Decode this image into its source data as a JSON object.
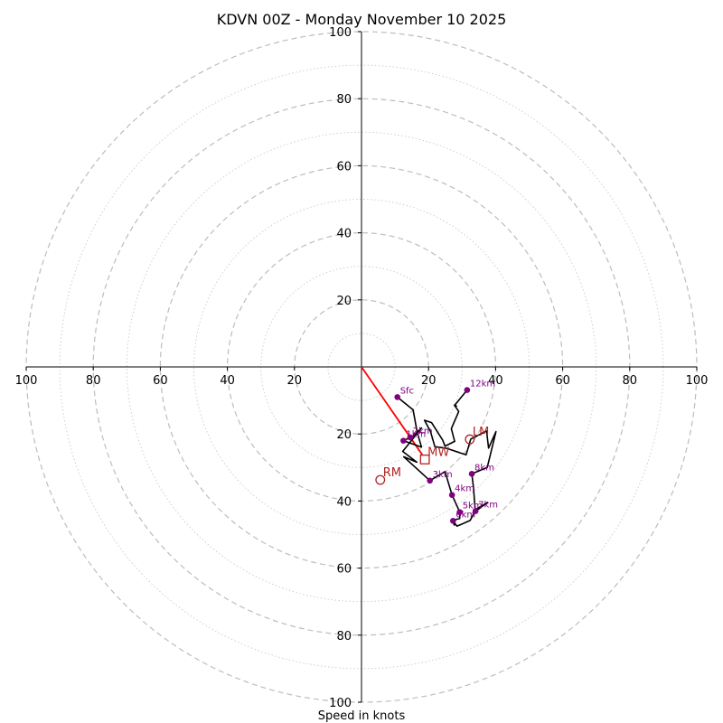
{
  "chart_data": {
    "type": "hodograph",
    "title": "KDVN 00Z - Monday November 10 2025",
    "xlabel": "Speed in knots",
    "range_knots": 100,
    "ring_major": [
      20,
      40,
      60,
      80,
      100
    ],
    "ring_minor": [
      10,
      30,
      50,
      70,
      90
    ],
    "tick_labels": {
      "left": [
        "100",
        "80",
        "60",
        "40",
        "20"
      ],
      "right": [
        "20",
        "40",
        "60",
        "80",
        "100"
      ],
      "up": [
        "20",
        "40",
        "60",
        "80",
        "100"
      ],
      "down": [
        "20",
        "40",
        "60",
        "80",
        "100"
      ]
    },
    "trace_color": "#000000",
    "trace": [
      [
        10.7,
        -9
      ],
      [
        15.4,
        -12.8
      ],
      [
        16.6,
        -19.5
      ],
      [
        17.9,
        -23.9
      ],
      [
        12.5,
        -22
      ],
      [
        15.3,
        -20.7
      ],
      [
        17.9,
        -18.2
      ],
      [
        12.3,
        -25.2
      ],
      [
        16.5,
        -28.4
      ],
      [
        12.6,
        -26.8
      ],
      [
        20.4,
        -33.9
      ],
      [
        24.9,
        -31.2
      ],
      [
        27,
        -38.2
      ],
      [
        29.3,
        -43.3
      ],
      [
        29.3,
        -45.2
      ],
      [
        27.1,
        -45.8
      ],
      [
        27.7,
        -47.2
      ],
      [
        27.5,
        -45.6
      ],
      [
        27.3,
        -45.9
      ],
      [
        28.5,
        -47.5
      ],
      [
        32.4,
        -45.8
      ],
      [
        33.8,
        -43.2
      ],
      [
        37.6,
        -40.4
      ],
      [
        33.9,
        -42.6
      ],
      [
        33.4,
        -36
      ],
      [
        32.9,
        -31.9
      ],
      [
        37.5,
        -30
      ],
      [
        40.1,
        -19.3
      ],
      [
        37.9,
        -24.2
      ],
      [
        37.3,
        -19.1
      ],
      [
        32.6,
        -21.5
      ],
      [
        31.2,
        -26.2
      ],
      [
        25.1,
        -24.2
      ],
      [
        21.9,
        -23.8
      ],
      [
        20.6,
        -19.3
      ],
      [
        18.8,
        -15.9
      ],
      [
        20.9,
        -16.6
      ],
      [
        24.2,
        -21.8
      ],
      [
        24.9,
        -23.6
      ],
      [
        27.8,
        -22.2
      ],
      [
        26.8,
        -18.4
      ],
      [
        29,
        -13.3
      ],
      [
        27.7,
        -11.4
      ],
      [
        28.3,
        -11.7
      ],
      [
        27.9,
        -11.3
      ],
      [
        31.5,
        -6.9
      ]
    ],
    "height_points": [
      {
        "label": "Sfc",
        "u": 10.7,
        "v": -9
      },
      {
        "label": "1km",
        "u": 12.5,
        "v": -22
      },
      {
        "label": "2km",
        "u": 14.5,
        "v": -21
      },
      {
        "label": "3km",
        "u": 20.4,
        "v": -33.9
      },
      {
        "label": "4km",
        "u": 27,
        "v": -38.2
      },
      {
        "label": "5km",
        "u": 29.3,
        "v": -43.3
      },
      {
        "label": "6km",
        "u": 27.3,
        "v": -45.9
      },
      {
        "label": "7km",
        "u": 34,
        "v": -43
      },
      {
        "label": "8km",
        "u": 32.9,
        "v": -31.9
      },
      {
        "label": "12km",
        "u": 31.5,
        "v": -6.9
      }
    ],
    "height_color": "#800080",
    "storm_motion": {
      "color": "#b22222",
      "RM": {
        "label": "RM",
        "u": 5.6,
        "v": -33.7
      },
      "LM": {
        "label": "LM",
        "u": 32.3,
        "v": -21.6
      },
      "MW": {
        "label": "MW",
        "u": 18.9,
        "v": -27.6
      }
    },
    "shear_vector": {
      "from": [
        0,
        0
      ],
      "to": [
        18.2,
        -26.3
      ],
      "color": "#ff0000"
    }
  }
}
